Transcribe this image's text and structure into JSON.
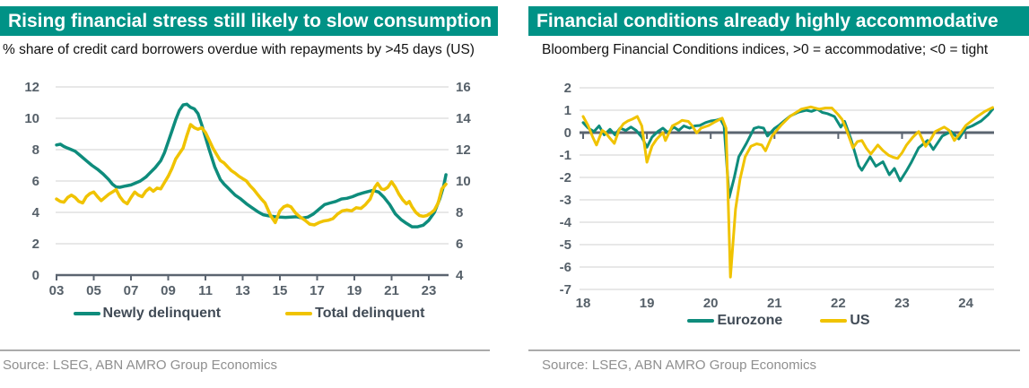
{
  "colors": {
    "header_teal": "#009286",
    "line_teal": "#0E8C7C",
    "line_yellow": "#F0C300",
    "axis_text": "#566069",
    "axis_line": "#5B6470",
    "gridline": "#D9D9D9"
  },
  "chart_data": [
    {
      "type": "line",
      "title": "Rising financial stress still likely to slow consumption",
      "subtitle": "% share of credit card borrowers overdue with repayments by >45 days (US)",
      "source": "Source: LSEG, ABN AMRO Group Economics",
      "grid": true,
      "legend_position": "bottom",
      "x_range": [
        2003,
        2024.3
      ],
      "x_tick_years": [
        2003,
        2005,
        2007,
        2009,
        2011,
        2013,
        2015,
        2017,
        2019,
        2021,
        2023
      ],
      "x_tick_labels": [
        "03",
        "05",
        "07",
        "09",
        "11",
        "13",
        "15",
        "17",
        "19",
        "21",
        "23"
      ],
      "left_axis": {
        "ticks": [
          0,
          2,
          4,
          6,
          8,
          10,
          12
        ],
        "range": [
          0,
          12
        ]
      },
      "right_axis": {
        "ticks": [
          4,
          6,
          8,
          10,
          12,
          14,
          16
        ],
        "range": [
          4,
          16
        ]
      },
      "series": [
        {
          "name": "Newly delinquent",
          "axis": "left",
          "color": "#0E8C7C",
          "x": [
            2003.0,
            2003.2,
            2003.4,
            2003.6,
            2003.8,
            2004.0,
            2004.3,
            2004.6,
            2004.9,
            2005.2,
            2005.5,
            2005.8,
            2006.0,
            2006.2,
            2006.4,
            2006.7,
            2007.0,
            2007.2,
            2007.5,
            2007.8,
            2008.0,
            2008.3,
            2008.6,
            2008.8,
            2009.0,
            2009.2,
            2009.4,
            2009.6,
            2009.8,
            2010.0,
            2010.2,
            2010.4,
            2010.6,
            2010.8,
            2011.0,
            2011.2,
            2011.5,
            2011.8,
            2012.0,
            2012.3,
            2012.6,
            2012.9,
            2013.2,
            2013.5,
            2013.8,
            2014.1,
            2014.4,
            2014.7,
            2015.0,
            2015.3,
            2015.6,
            2015.9,
            2016.2,
            2016.5,
            2016.8,
            2017.1,
            2017.4,
            2017.7,
            2018.0,
            2018.3,
            2018.6,
            2018.9,
            2019.2,
            2019.5,
            2019.8,
            2020.0,
            2020.3,
            2020.6,
            2020.9,
            2021.2,
            2021.5,
            2021.8,
            2022.1,
            2022.4,
            2022.7,
            2023.0,
            2023.3,
            2023.6,
            2023.8,
            2023.92
          ],
          "values": [
            8.3,
            8.35,
            8.2,
            8.1,
            8.0,
            7.9,
            7.6,
            7.3,
            7.0,
            6.75,
            6.45,
            6.1,
            5.8,
            5.62,
            5.6,
            5.68,
            5.75,
            5.85,
            6.0,
            6.25,
            6.5,
            6.85,
            7.3,
            7.8,
            8.5,
            9.2,
            9.9,
            10.5,
            10.85,
            10.9,
            10.7,
            10.6,
            10.3,
            9.6,
            8.8,
            8.0,
            6.9,
            6.1,
            5.8,
            5.45,
            5.1,
            4.85,
            4.55,
            4.3,
            4.05,
            3.85,
            3.78,
            3.73,
            3.7,
            3.68,
            3.7,
            3.72,
            3.64,
            3.7,
            3.9,
            4.2,
            4.5,
            4.6,
            4.7,
            4.85,
            4.9,
            5.0,
            5.15,
            5.25,
            5.35,
            5.4,
            5.3,
            4.95,
            4.5,
            3.9,
            3.55,
            3.3,
            3.08,
            3.08,
            3.18,
            3.5,
            4.0,
            4.9,
            5.7,
            6.4
          ]
        },
        {
          "name": "Total delinquent",
          "axis": "right",
          "color": "#F0C300",
          "x": [
            2003.0,
            2003.2,
            2003.4,
            2003.6,
            2003.8,
            2004.0,
            2004.2,
            2004.4,
            2004.6,
            2004.8,
            2005.0,
            2005.2,
            2005.4,
            2005.6,
            2005.8,
            2006.0,
            2006.2,
            2006.4,
            2006.6,
            2006.8,
            2007.0,
            2007.2,
            2007.4,
            2007.6,
            2007.8,
            2008.0,
            2008.2,
            2008.4,
            2008.6,
            2008.8,
            2009.0,
            2009.2,
            2009.4,
            2009.6,
            2009.8,
            2010.0,
            2010.2,
            2010.4,
            2010.6,
            2010.8,
            2011.0,
            2011.2,
            2011.4,
            2011.6,
            2011.8,
            2012.0,
            2012.2,
            2012.4,
            2012.6,
            2012.8,
            2013.0,
            2013.2,
            2013.4,
            2013.6,
            2013.8,
            2014.0,
            2014.2,
            2014.5,
            2014.75,
            2015.0,
            2015.2,
            2015.4,
            2015.6,
            2015.85,
            2016.1,
            2016.35,
            2016.6,
            2016.85,
            2017.1,
            2017.35,
            2017.6,
            2017.85,
            2018.1,
            2018.35,
            2018.6,
            2018.85,
            2019.1,
            2019.35,
            2019.6,
            2019.85,
            2020.1,
            2020.25,
            2020.45,
            2020.6,
            2020.8,
            2021.0,
            2021.2,
            2021.4,
            2021.6,
            2021.8,
            2021.95,
            2022.1,
            2022.3,
            2022.5,
            2022.7,
            2022.9,
            2023.1,
            2023.3,
            2023.5,
            2023.7,
            2023.92
          ],
          "values": [
            8.85,
            8.7,
            8.65,
            8.95,
            9.1,
            8.95,
            8.7,
            8.6,
            9.0,
            9.2,
            9.3,
            9.0,
            8.75,
            8.95,
            9.15,
            9.3,
            9.45,
            9.0,
            8.7,
            8.55,
            8.95,
            9.3,
            9.1,
            9.0,
            9.35,
            9.55,
            9.35,
            9.55,
            9.5,
            9.9,
            10.3,
            10.8,
            11.4,
            11.75,
            12.1,
            12.9,
            13.6,
            13.4,
            13.3,
            13.4,
            13.1,
            12.6,
            12.1,
            11.7,
            11.3,
            11.15,
            10.9,
            10.65,
            10.5,
            10.3,
            10.15,
            10.0,
            9.7,
            9.45,
            9.15,
            8.85,
            8.6,
            7.8,
            7.35,
            8.1,
            8.35,
            8.45,
            8.35,
            7.95,
            7.7,
            7.5,
            7.25,
            7.2,
            7.35,
            7.45,
            7.5,
            7.6,
            7.9,
            8.1,
            8.15,
            8.1,
            8.3,
            8.25,
            8.5,
            8.85,
            9.6,
            9.85,
            9.5,
            9.45,
            9.6,
            9.95,
            9.6,
            9.15,
            8.8,
            8.55,
            8.7,
            8.35,
            8.0,
            7.8,
            7.75,
            7.8,
            7.95,
            8.15,
            8.6,
            9.5,
            9.8
          ]
        }
      ]
    },
    {
      "type": "line",
      "title": "Financial conditions already highly accommodative",
      "subtitle": "Bloomberg Financial Conditions indices, >0 = accommodative; <0 = tight",
      "source": "Source: LSEG, ABN AMRO Group Economics",
      "grid": true,
      "legend_position": "bottom",
      "zero_line": true,
      "x_range": [
        2018,
        2024.45
      ],
      "x_tick_years": [
        2018,
        2019,
        2020,
        2021,
        2022,
        2023,
        2024
      ],
      "x_tick_labels": [
        "18",
        "19",
        "20",
        "21",
        "22",
        "23",
        "24"
      ],
      "y_axis": {
        "ticks": [
          2,
          1,
          0,
          -1,
          -2,
          -3,
          -4,
          -5,
          -6,
          -7
        ],
        "range": [
          -7,
          2
        ]
      },
      "series": [
        {
          "name": "Eurozone",
          "color": "#0E8C7C",
          "x": [
            2018.0,
            2018.08,
            2018.17,
            2018.25,
            2018.33,
            2018.42,
            2018.5,
            2018.58,
            2018.67,
            2018.75,
            2018.83,
            2018.92,
            2019.0,
            2019.08,
            2019.17,
            2019.25,
            2019.33,
            2019.42,
            2019.5,
            2019.58,
            2019.67,
            2019.75,
            2019.83,
            2019.92,
            2020.0,
            2020.08,
            2020.15,
            2020.21,
            2020.29,
            2020.37,
            2020.44,
            2020.56,
            2020.68,
            2020.75,
            2020.83,
            2020.89,
            2021.0,
            2021.08,
            2021.15,
            2021.25,
            2021.38,
            2021.5,
            2021.58,
            2021.67,
            2021.75,
            2021.83,
            2021.94,
            2022.04,
            2022.1,
            2022.2,
            2022.32,
            2022.37,
            2022.5,
            2022.59,
            2022.7,
            2022.8,
            2022.88,
            2022.97,
            2023.07,
            2023.14,
            2023.26,
            2023.4,
            2023.49,
            2023.63,
            2023.77,
            2023.89,
            2024.0,
            2024.1,
            2024.24,
            2024.35,
            2024.42
          ],
          "values": [
            0.45,
            0.2,
            0.05,
            0.3,
            -0.1,
            0.15,
            -0.1,
            0.2,
            0.1,
            0.25,
            0.1,
            -0.2,
            -0.65,
            -0.2,
            0.05,
            0.2,
            0.0,
            0.25,
            0.1,
            0.3,
            0.2,
            0.3,
            0.32,
            0.45,
            0.52,
            0.55,
            0.61,
            0.3,
            -2.9,
            -2.0,
            -1.08,
            -0.48,
            0.19,
            0.25,
            0.2,
            -0.15,
            0.19,
            0.35,
            0.52,
            0.75,
            0.92,
            1.0,
            0.95,
            1.05,
            0.9,
            0.85,
            0.72,
            0.25,
            0.5,
            -0.3,
            -1.48,
            -1.68,
            -1.08,
            -1.5,
            -1.3,
            -1.88,
            -1.6,
            -2.15,
            -1.7,
            -1.35,
            -0.68,
            -0.35,
            -0.75,
            -0.15,
            0.05,
            -0.28,
            0.19,
            0.3,
            0.52,
            0.8,
            1.05
          ]
        },
        {
          "name": "US",
          "color": "#F0C300",
          "x": [
            2018.0,
            2018.08,
            2018.15,
            2018.21,
            2018.3,
            2018.35,
            2018.42,
            2018.49,
            2018.56,
            2018.63,
            2018.7,
            2018.77,
            2018.85,
            2018.92,
            2019.0,
            2019.08,
            2019.15,
            2019.25,
            2019.29,
            2019.4,
            2019.5,
            2019.55,
            2019.65,
            2019.71,
            2019.78,
            2019.85,
            2019.97,
            2020.08,
            2020.18,
            2020.24,
            2020.31,
            2020.39,
            2020.46,
            2020.54,
            2020.63,
            2020.72,
            2020.8,
            2020.86,
            2020.96,
            2021.1,
            2021.24,
            2021.42,
            2021.57,
            2021.7,
            2021.8,
            2021.9,
            2022.0,
            2022.06,
            2022.13,
            2022.23,
            2022.3,
            2022.37,
            2022.44,
            2022.51,
            2022.62,
            2022.7,
            2022.79,
            2022.86,
            2022.93,
            2023.0,
            2023.07,
            2023.17,
            2023.26,
            2023.37,
            2023.45,
            2023.52,
            2023.66,
            2023.74,
            2023.82,
            2023.92,
            2024.0,
            2024.1,
            2024.18,
            2024.3,
            2024.42
          ],
          "values": [
            0.72,
            0.3,
            -0.2,
            -0.55,
            0.1,
            0.0,
            -0.25,
            -0.48,
            0.1,
            0.39,
            0.52,
            0.6,
            0.72,
            0.3,
            -1.32,
            -0.6,
            -0.3,
            0.0,
            -0.35,
            0.3,
            0.45,
            0.55,
            0.5,
            0.3,
            -0.01,
            0.2,
            0.32,
            0.5,
            0.65,
            0.2,
            -6.45,
            -3.41,
            -2.08,
            -1.08,
            -0.61,
            -0.5,
            -0.55,
            -0.81,
            -0.15,
            0.32,
            0.72,
            1.05,
            1.15,
            1.05,
            1.1,
            1.1,
            0.8,
            0.59,
            0.12,
            -0.68,
            -0.4,
            -0.35,
            -0.7,
            -0.95,
            -0.55,
            -0.8,
            -1.01,
            -1.1,
            -1.15,
            -0.9,
            -0.55,
            -0.2,
            0.05,
            -0.61,
            -0.3,
            0.05,
            0.25,
            0.1,
            -0.35,
            0.0,
            0.32,
            0.55,
            0.72,
            0.95,
            1.12
          ]
        }
      ]
    }
  ]
}
